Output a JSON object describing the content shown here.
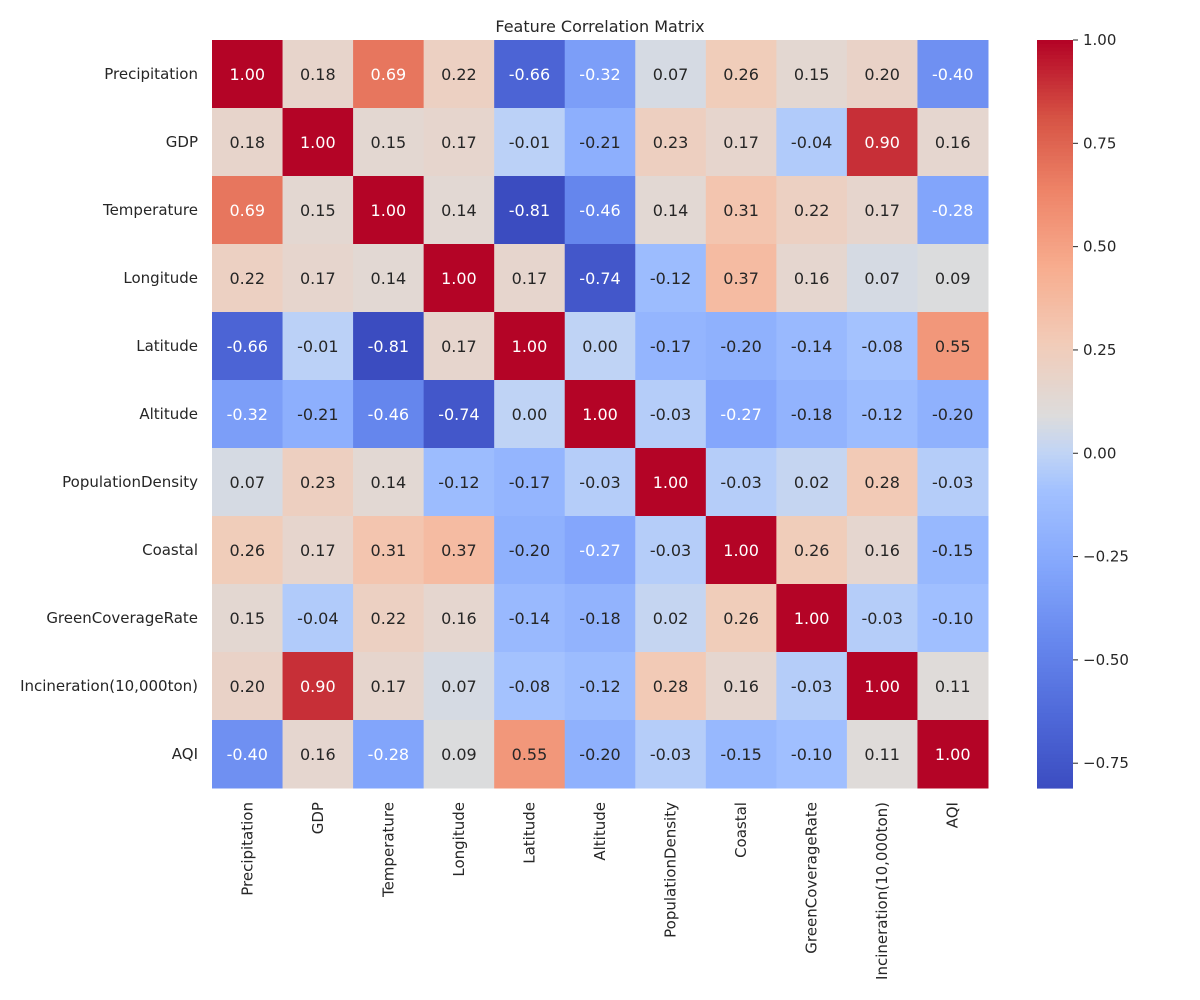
{
  "chart_data": {
    "type": "heatmap",
    "title": "Feature Correlation Matrix",
    "colormap": "coolwarm",
    "color_range": [
      -0.81,
      1.0
    ],
    "labels": [
      "Precipitation",
      "GDP",
      "Temperature",
      "Longitude",
      "Latitude",
      "Altitude",
      "PopulationDensity",
      "Coastal",
      "GreenCoverageRate",
      "Incineration(10,000ton)",
      "AQI"
    ],
    "values": [
      [
        1.0,
        0.18,
        0.69,
        0.22,
        -0.66,
        -0.32,
        0.07,
        0.26,
        0.15,
        0.2,
        -0.4
      ],
      [
        0.18,
        1.0,
        0.15,
        0.17,
        -0.01,
        -0.21,
        0.23,
        0.17,
        -0.04,
        0.9,
        0.16
      ],
      [
        0.69,
        0.15,
        1.0,
        0.14,
        -0.81,
        -0.46,
        0.14,
        0.31,
        0.22,
        0.17,
        -0.28
      ],
      [
        0.22,
        0.17,
        0.14,
        1.0,
        0.17,
        -0.74,
        -0.12,
        0.37,
        0.16,
        0.07,
        0.09
      ],
      [
        -0.66,
        -0.01,
        -0.81,
        0.17,
        1.0,
        0.0,
        -0.17,
        -0.2,
        -0.14,
        -0.08,
        0.55
      ],
      [
        -0.32,
        -0.21,
        -0.46,
        -0.74,
        0.0,
        1.0,
        -0.03,
        -0.27,
        -0.18,
        -0.12,
        -0.2
      ],
      [
        0.07,
        0.23,
        0.14,
        -0.12,
        -0.17,
        -0.03,
        1.0,
        -0.03,
        0.02,
        0.28,
        -0.03
      ],
      [
        0.26,
        0.17,
        0.31,
        0.37,
        -0.2,
        -0.27,
        -0.03,
        1.0,
        0.26,
        0.16,
        -0.15
      ],
      [
        0.15,
        -0.04,
        0.22,
        0.16,
        -0.14,
        -0.18,
        0.02,
        0.26,
        1.0,
        -0.03,
        -0.1
      ],
      [
        0.2,
        0.9,
        0.17,
        0.07,
        -0.08,
        -0.12,
        0.28,
        0.16,
        -0.03,
        1.0,
        0.11
      ],
      [
        -0.4,
        0.16,
        -0.28,
        0.09,
        0.55,
        -0.2,
        -0.03,
        -0.15,
        -0.1,
        0.11,
        1.0
      ]
    ],
    "colorbar_ticks": [
      1.0,
      0.75,
      0.5,
      0.25,
      0.0,
      -0.25,
      -0.5,
      -0.75
    ],
    "colorbar_tick_labels": [
      "1.00",
      "0.75",
      "0.50",
      "0.25",
      "0.00",
      "−0.25",
      "−0.50",
      "−0.75"
    ]
  }
}
